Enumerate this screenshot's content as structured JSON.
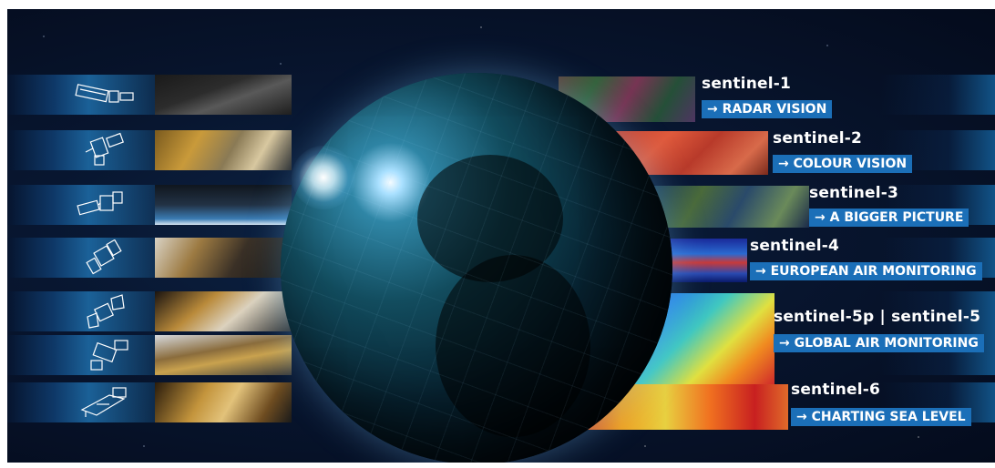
{
  "sentinels": [
    {
      "name": "sentinel-1",
      "tagline": "RADAR VISION"
    },
    {
      "name": "sentinel-2",
      "tagline": "COLOUR VISION"
    },
    {
      "name": "sentinel-3",
      "tagline": "A BIGGER PICTURE"
    },
    {
      "name": "sentinel-4",
      "tagline": "EUROPEAN AIR MONITORING"
    },
    {
      "name": "sentinel-5p | sentinel-5",
      "tagline": "GLOBAL AIR MONITORING"
    },
    {
      "name": "sentinel-6",
      "tagline": "CHARTING SEA LEVEL"
    }
  ],
  "arrow": "→",
  "colors": {
    "label_bg": "#1b6fb8",
    "background": "#081630",
    "text": "#ffffff"
  },
  "icons": [
    "sentinel-1-satellite-icon",
    "sentinel-2-satellite-icon",
    "sentinel-3-satellite-icon",
    "sentinel-4-satellite-icon",
    "sentinel-5p-satellite-icon",
    "sentinel-5-satellite-icon",
    "sentinel-6-satellite-icon"
  ]
}
